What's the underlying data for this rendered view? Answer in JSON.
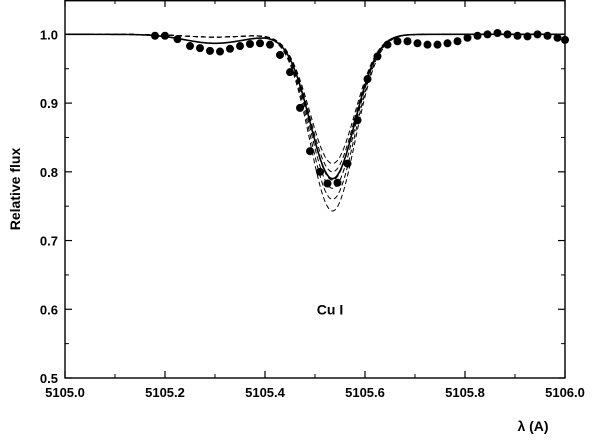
{
  "chart_data": {
    "type": "line",
    "title": "",
    "xlabel": "λ (A)",
    "ylabel": "Relative flux",
    "xlim": [
      5105.0,
      5106.0
    ],
    "ylim": [
      0.5,
      1.05
    ],
    "grid": false,
    "x_ticks": [
      5105.0,
      5105.2,
      5105.4,
      5105.6,
      5105.8,
      5106.0
    ],
    "x_tick_labels": [
      "5105.0",
      "5105.2",
      "5105.4",
      "5105.6",
      "5105.8",
      "5106.0"
    ],
    "y_ticks": [
      0.5,
      0.6,
      0.7,
      0.8,
      0.9,
      1.0
    ],
    "y_tick_labels": [
      "0.5",
      "0.6",
      "0.7",
      "0.8",
      "0.9",
      "1.0"
    ],
    "annotations": [
      {
        "text": "Cu I",
        "x": 5105.53,
        "y": 0.6
      }
    ],
    "observed": {
      "style": "filled-circles",
      "x": [
        5105.18,
        5105.2,
        5105.225,
        5105.25,
        5105.27,
        5105.29,
        5105.31,
        5105.33,
        5105.35,
        5105.37,
        5105.39,
        5105.41,
        5105.43,
        5105.45,
        5105.47,
        5105.49,
        5105.51,
        5105.525,
        5105.545,
        5105.565,
        5105.585,
        5105.605,
        5105.625,
        5105.645,
        5105.665,
        5105.685,
        5105.705,
        5105.725,
        5105.745,
        5105.765,
        5105.785,
        5105.805,
        5105.825,
        5105.845,
        5105.865,
        5105.885,
        5105.905,
        5105.925,
        5105.945,
        5105.965,
        5105.985,
        5106.0
      ],
      "y": [
        0.998,
        0.998,
        0.993,
        0.983,
        0.98,
        0.976,
        0.975,
        0.979,
        0.983,
        0.986,
        0.987,
        0.985,
        0.97,
        0.945,
        0.893,
        0.83,
        0.8,
        0.783,
        0.784,
        0.812,
        0.875,
        0.935,
        0.968,
        0.985,
        0.99,
        0.99,
        0.987,
        0.985,
        0.985,
        0.987,
        0.99,
        0.995,
        0.998,
        1.0,
        1.002,
        1.0,
        0.998,
        0.997,
        1.0,
        0.998,
        0.995,
        0.992
      ]
    },
    "model_center": 5105.535,
    "model_sigma": 0.045,
    "model_wing": {
      "center": 5105.3,
      "sigma": 0.06
    },
    "series": [
      {
        "style": "solid",
        "depth": 0.21,
        "wing_depth": 0.013
      },
      {
        "style": "dashed",
        "depth": 0.188,
        "wing_depth": 0.004
      },
      {
        "style": "dashed",
        "depth": 0.2,
        "wing_depth": 0.004
      },
      {
        "style": "dashed",
        "depth": 0.212,
        "wing_depth": 0.004
      },
      {
        "style": "dashed",
        "depth": 0.224,
        "wing_depth": 0.004
      },
      {
        "style": "dashed",
        "depth": 0.24,
        "wing_depth": 0.004
      },
      {
        "style": "dashed",
        "depth": 0.257,
        "wing_depth": 0.004
      }
    ]
  }
}
